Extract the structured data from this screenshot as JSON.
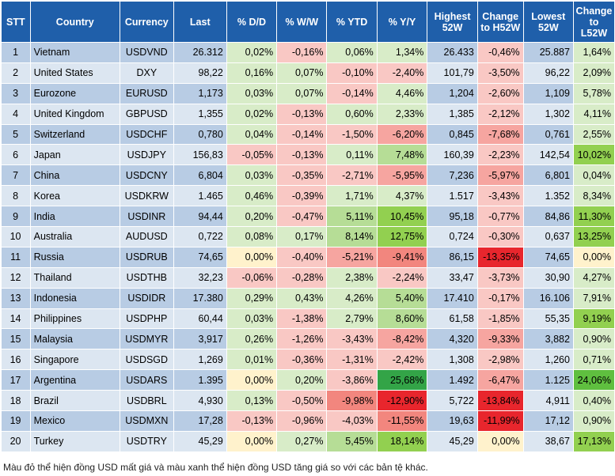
{
  "columns": [
    "STT",
    "Country",
    "Currency",
    "Last",
    "% D/D",
    "% W/W",
    "% YTD",
    "% Y/Y",
    "Highest 52W",
    "Change to H52W",
    "Lowest 52W",
    "Change to L52W"
  ],
  "rows": [
    [
      "1",
      "Vietnam",
      "USDVND",
      "26.312",
      "0,02%",
      "-0,16%",
      "0,06%",
      "1,34%",
      "26.433",
      "-0,46%",
      "25.887",
      "1,64%"
    ],
    [
      "2",
      "United States",
      "DXY",
      "98,22",
      "0,16%",
      "0,07%",
      "-0,10%",
      "-2,40%",
      "101,79",
      "-3,50%",
      "96,22",
      "2,09%"
    ],
    [
      "3",
      "Eurozone",
      "EURUSD",
      "1,173",
      "0,03%",
      "0,07%",
      "-0,14%",
      "4,46%",
      "1,204",
      "-2,60%",
      "1,109",
      "5,78%"
    ],
    [
      "4",
      "United Kingdom",
      "GBPUSD",
      "1,355",
      "0,02%",
      "-0,13%",
      "0,60%",
      "2,33%",
      "1,385",
      "-2,12%",
      "1,302",
      "4,11%"
    ],
    [
      "5",
      "Switzerland",
      "USDCHF",
      "0,780",
      "0,04%",
      "-0,14%",
      "-1,50%",
      "-6,20%",
      "0,845",
      "-7,68%",
      "0,761",
      "2,55%"
    ],
    [
      "6",
      "Japan",
      "USDJPY",
      "156,83",
      "-0,05%",
      "-0,13%",
      "0,11%",
      "7,48%",
      "160,39",
      "-2,23%",
      "142,54",
      "10,02%"
    ],
    [
      "7",
      "China",
      "USDCNY",
      "6,804",
      "0,03%",
      "-0,35%",
      "-2,71%",
      "-5,95%",
      "7,236",
      "-5,97%",
      "6,801",
      "0,04%"
    ],
    [
      "8",
      "Korea",
      "USDKRW",
      "1.465",
      "0,46%",
      "-0,39%",
      "1,71%",
      "4,37%",
      "1.517",
      "-3,43%",
      "1.352",
      "8,34%"
    ],
    [
      "9",
      "India",
      "USDINR",
      "94,44",
      "0,20%",
      "-0,47%",
      "5,11%",
      "10,45%",
      "95,18",
      "-0,77%",
      "84,86",
      "11,30%"
    ],
    [
      "10",
      "Australia",
      "AUDUSD",
      "0,722",
      "0,08%",
      "0,17%",
      "8,14%",
      "12,75%",
      "0,724",
      "-0,30%",
      "0,637",
      "13,25%"
    ],
    [
      "11",
      "Russia",
      "USDRUB",
      "74,65",
      "0,00%",
      "-0,40%",
      "-5,21%",
      "-9,41%",
      "86,15",
      "-13,35%",
      "74,65",
      "0,00%"
    ],
    [
      "12",
      "Thailand",
      "USDTHB",
      "32,23",
      "-0,06%",
      "-0,28%",
      "2,38%",
      "-2,24%",
      "33,47",
      "-3,73%",
      "30,90",
      "4,27%"
    ],
    [
      "13",
      "Indonesia",
      "USDIDR",
      "17.380",
      "0,29%",
      "0,43%",
      "4,26%",
      "5,40%",
      "17.410",
      "-0,17%",
      "16.106",
      "7,91%"
    ],
    [
      "14",
      "Philippines",
      "USDPHP",
      "60,44",
      "0,03%",
      "-1,38%",
      "2,79%",
      "8,60%",
      "61,58",
      "-1,85%",
      "55,35",
      "9,19%"
    ],
    [
      "15",
      "Malaysia",
      "USDMYR",
      "3,917",
      "0,26%",
      "-1,26%",
      "-3,43%",
      "-8,42%",
      "4,320",
      "-9,33%",
      "3,882",
      "0,90%"
    ],
    [
      "16",
      "Singapore",
      "USDSGD",
      "1,269",
      "0,01%",
      "-0,36%",
      "-1,31%",
      "-2,42%",
      "1,308",
      "-2,98%",
      "1,260",
      "0,71%"
    ],
    [
      "17",
      "Argentina",
      "USDARS",
      "1.395",
      "0,00%",
      "0,20%",
      "-3,86%",
      "25,68%",
      "1.492",
      "-6,47%",
      "1.125",
      "24,06%"
    ],
    [
      "18",
      "Brazil",
      "USDBRL",
      "4,930",
      "0,13%",
      "-0,50%",
      "-9,98%",
      "-12,90%",
      "5,722",
      "-13,84%",
      "4,911",
      "0,40%"
    ],
    [
      "19",
      "Mexico",
      "USDMXN",
      "17,28",
      "-0,13%",
      "-0,96%",
      "-4,03%",
      "-11,55%",
      "19,63",
      "-11,99%",
      "17,12",
      "0,90%"
    ],
    [
      "20",
      "Turkey",
      "USDTRY",
      "45,29",
      "0,00%",
      "0,27%",
      "5,45%",
      "18,14%",
      "45,29",
      "0,00%",
      "38,67",
      "17,13%"
    ]
  ],
  "colors": {
    "header_bg": "#1f5faa",
    "row_odd": "#b8cce4",
    "row_even": "#dce6f1",
    "neutral_cell": "#ffffff"
  },
  "footnote": "Màu đỏ thể hiện đồng USD mất giá và màu xanh thể hiện đồng USD tăng giá so với các bản tệ khác."
}
